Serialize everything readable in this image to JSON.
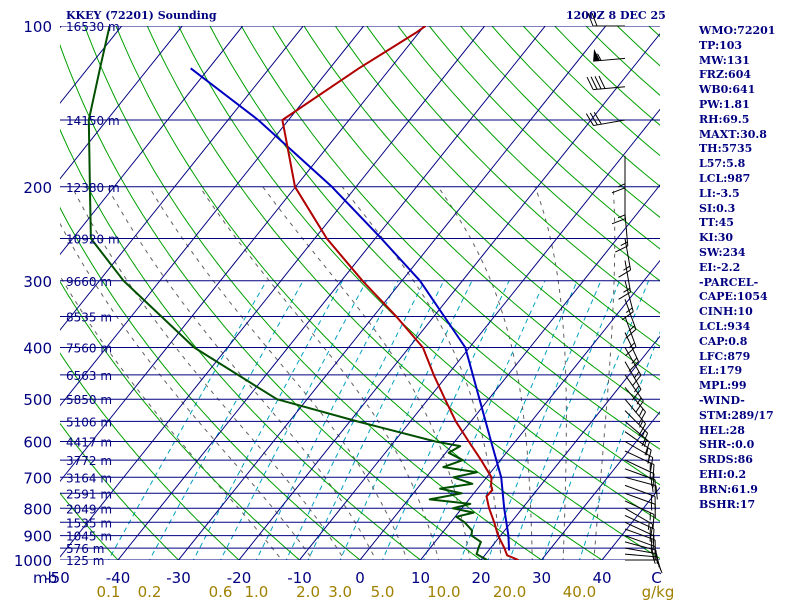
{
  "header": {
    "station": "KKEY (72201) Sounding",
    "time": "1200Z  8 DEC 25"
  },
  "indices": [
    "WMO:72201",
    "TP:103",
    "MW:131",
    "FRZ:604",
    "WB0:641",
    "PW:1.81",
    "RH:69.5",
    "MAXT:30.8",
    "TH:5735",
    "L57:5.8",
    "LCL:987",
    "LI:-3.5",
    "SI:0.3",
    "TT:45",
    "KI:30",
    "SW:234",
    "EI:-2.2",
    "-PARCEL-",
    "CAPE:1054",
    "CINH:10",
    "LCL:934",
    "CAP:0.8",
    "LFC:879",
    "EL:179",
    "MPL:99",
    "-WIND-",
    "STM:289/17",
    "HEL:28",
    "SHR-:0.0",
    "SRDS:86",
    "EHI:0.2",
    "BRN:61.9",
    "BSHR:17"
  ],
  "colors": {
    "isobar": "#000080",
    "isotherm": "#000080",
    "dry_adiabat": "#00a000",
    "moist_adiabat": "#606060",
    "mixing_ratio": "#00a0c0",
    "temperature": "#b00000",
    "dewpoint": "#005000",
    "parcel": "#0000c0",
    "axis_text": "#000080",
    "mixing_text": "#a08000",
    "wind_barb": "#000000"
  },
  "chart_data": {
    "type": "skew-t",
    "units": {
      "pressure": "mb",
      "temperature": "C",
      "mixing_ratio": "g/kg"
    },
    "pressure_levels": [
      100,
      200,
      300,
      400,
      500,
      600,
      700,
      800,
      900,
      1000
    ],
    "height_labels": [
      {
        "p": 100,
        "label": "16530 m"
      },
      {
        "p": 150,
        "label": "14150 m"
      },
      {
        "p": 200,
        "label": "12380 m"
      },
      {
        "p": 250,
        "label": "10920 m"
      },
      {
        "p": 300,
        "label": "9660 m"
      },
      {
        "p": 350,
        "label": "8535 m"
      },
      {
        "p": 400,
        "label": "7560 m"
      },
      {
        "p": 450,
        "label": "6563 m"
      },
      {
        "p": 500,
        "label": "5850 m"
      },
      {
        "p": 550,
        "label": "5106 m"
      },
      {
        "p": 600,
        "label": "4417 m"
      },
      {
        "p": 650,
        "label": "3772 m"
      },
      {
        "p": 700,
        "label": "3164 m"
      },
      {
        "p": 750,
        "label": "2591 m"
      },
      {
        "p": 800,
        "label": "2049 m"
      },
      {
        "p": 850,
        "label": "1535 m"
      },
      {
        "p": 900,
        "label": "1045 m"
      },
      {
        "p": 950,
        "label": "576 m"
      },
      {
        "p": 1000,
        "label": "125 m"
      }
    ],
    "temperature_ticks": [
      "-50",
      "-40",
      "-30",
      "-20",
      "-10",
      "0",
      "10",
      "20",
      "30",
      "40",
      "C"
    ],
    "temperature_tick_values": [
      -50,
      -40,
      -30,
      -20,
      -10,
      0,
      10,
      20,
      30,
      40
    ],
    "mixing_ratio_ticks": [
      "0.1",
      "0.2",
      "0.6",
      "1.0",
      "2.0",
      "3.0",
      "5.0",
      "10.0",
      "20.0",
      "40.0",
      "g/kg"
    ],
    "mixing_ratio_tick_values": [
      0.1,
      0.2,
      0.6,
      1.0,
      2.0,
      3.0,
      5.0,
      10.0,
      20.0,
      40.0
    ],
    "mixing_ratio_lines": [
      0.1,
      0.2,
      0.4,
      0.6,
      1.0,
      1.5,
      2.0,
      3.0,
      5.0,
      8.0,
      12.0,
      16.0,
      20.0,
      28.0,
      40.0
    ],
    "pressure_axis_label": "mb",
    "temperature_profile": [
      {
        "p": 1000,
        "t": 26.2
      },
      {
        "p": 980,
        "t": 23.7
      },
      {
        "p": 950,
        "t": 22.3
      },
      {
        "p": 900,
        "t": 19.6
      },
      {
        "p": 850,
        "t": 17.2
      },
      {
        "p": 800,
        "t": 14.5
      },
      {
        "p": 760,
        "t": 12.5
      },
      {
        "p": 740,
        "t": 12.6
      },
      {
        "p": 725,
        "t": 11.8
      },
      {
        "p": 700,
        "t": 10.8
      },
      {
        "p": 650,
        "t": 6.8
      },
      {
        "p": 600,
        "t": 2.3
      },
      {
        "p": 550,
        "t": -2.5
      },
      {
        "p": 500,
        "t": -7.2
      },
      {
        "p": 450,
        "t": -12.3
      },
      {
        "p": 400,
        "t": -17.7
      },
      {
        "p": 350,
        "t": -26.2
      },
      {
        "p": 300,
        "t": -36.5
      },
      {
        "p": 250,
        "t": -48.0
      },
      {
        "p": 200,
        "t": -60.1
      },
      {
        "p": 150,
        "t": -71.0
      },
      {
        "p": 120,
        "t": -65.2
      },
      {
        "p": 103,
        "t": -60.5
      },
      {
        "p": 100,
        "t": -59.8
      }
    ],
    "dewpoint_profile": [
      {
        "p": 1000,
        "t": 21.0
      },
      {
        "p": 975,
        "t": 18.5
      },
      {
        "p": 950,
        "t": 18.0
      },
      {
        "p": 925,
        "t": 17.6
      },
      {
        "p": 900,
        "t": 15.2
      },
      {
        "p": 880,
        "t": 14.6
      },
      {
        "p": 850,
        "t": 12.3
      },
      {
        "p": 830,
        "t": 10.2
      },
      {
        "p": 815,
        "t": 12.5
      },
      {
        "p": 800,
        "t": 8.5
      },
      {
        "p": 785,
        "t": 10.8
      },
      {
        "p": 770,
        "t": 3.5
      },
      {
        "p": 750,
        "t": 8.0
      },
      {
        "p": 735,
        "t": 3.8
      },
      {
        "p": 720,
        "t": 8.5
      },
      {
        "p": 700,
        "t": 4.5
      },
      {
        "p": 685,
        "t": 7.7
      },
      {
        "p": 670,
        "t": 1.5
      },
      {
        "p": 650,
        "t": 3.8
      },
      {
        "p": 630,
        "t": 0.5
      },
      {
        "p": 612,
        "t": 1.5
      },
      {
        "p": 600,
        "t": -3.2
      },
      {
        "p": 550,
        "t": -18.8
      },
      {
        "p": 500,
        "t": -35.0
      },
      {
        "p": 400,
        "t": -55.5
      },
      {
        "p": 300,
        "t": -76.0
      },
      {
        "p": 250,
        "t": -87.0
      },
      {
        "p": 200,
        "t": -94.0
      },
      {
        "p": 150,
        "t": -103.0
      },
      {
        "p": 120,
        "t": -108.0
      },
      {
        "p": 100,
        "t": -112.0
      }
    ],
    "parcel_profile": [
      {
        "p": 960,
        "t": 23.4
      },
      {
        "p": 900,
        "t": 21.3
      },
      {
        "p": 800,
        "t": 17.0
      },
      {
        "p": 700,
        "t": 12.4
      },
      {
        "p": 600,
        "t": 6.0
      },
      {
        "p": 500,
        "t": -1.5
      },
      {
        "p": 400,
        "t": -10.7
      },
      {
        "p": 300,
        "t": -27.0
      },
      {
        "p": 250,
        "t": -39.0
      },
      {
        "p": 200,
        "t": -54.0
      },
      {
        "p": 150,
        "t": -75.0
      },
      {
        "p": 120,
        "t": -93.0
      }
    ],
    "winds": [
      {
        "p": 1000,
        "dir": 90,
        "spd": 10
      },
      {
        "p": 975,
        "dir": 95,
        "spd": 15
      },
      {
        "p": 950,
        "dir": 100,
        "spd": 15
      },
      {
        "p": 925,
        "dir": 105,
        "spd": 15
      },
      {
        "p": 900,
        "dir": 110,
        "spd": 15
      },
      {
        "p": 875,
        "dir": 110,
        "spd": 15
      },
      {
        "p": 850,
        "dir": 115,
        "spd": 15
      },
      {
        "p": 825,
        "dir": 115,
        "spd": 15
      },
      {
        "p": 800,
        "dir": 120,
        "spd": 15
      },
      {
        "p": 775,
        "dir": 115,
        "spd": 15
      },
      {
        "p": 750,
        "dir": 110,
        "spd": 15
      },
      {
        "p": 725,
        "dir": 110,
        "spd": 15
      },
      {
        "p": 700,
        "dir": 105,
        "spd": 15
      },
      {
        "p": 675,
        "dir": 110,
        "spd": 15
      },
      {
        "p": 650,
        "dir": 115,
        "spd": 15
      },
      {
        "p": 625,
        "dir": 115,
        "spd": 15
      },
      {
        "p": 600,
        "dir": 120,
        "spd": 15
      },
      {
        "p": 575,
        "dir": 125,
        "spd": 15
      },
      {
        "p": 550,
        "dir": 130,
        "spd": 15
      },
      {
        "p": 525,
        "dir": 135,
        "spd": 15
      },
      {
        "p": 500,
        "dir": 140,
        "spd": 15
      },
      {
        "p": 475,
        "dir": 140,
        "spd": 15
      },
      {
        "p": 450,
        "dir": 145,
        "spd": 15
      },
      {
        "p": 425,
        "dir": 150,
        "spd": 15
      },
      {
        "p": 400,
        "dir": 150,
        "spd": 15
      },
      {
        "p": 375,
        "dir": 155,
        "spd": 15
      },
      {
        "p": 350,
        "dir": 160,
        "spd": 15
      },
      {
        "p": 325,
        "dir": 160,
        "spd": 15
      },
      {
        "p": 300,
        "dir": 165,
        "spd": 15
      },
      {
        "p": 275,
        "dir": 170,
        "spd": 15
      },
      {
        "p": 250,
        "dir": 170,
        "spd": 15
      },
      {
        "p": 225,
        "dir": 175,
        "spd": 15
      },
      {
        "p": 200,
        "dir": 180,
        "spd": 15
      },
      {
        "p": 175,
        "dir": 180,
        "spd": 15
      },
      {
        "p": 150,
        "dir": 260,
        "spd": 30
      },
      {
        "p": 130,
        "dir": 265,
        "spd": 40
      },
      {
        "p": 115,
        "dir": 265,
        "spd": 55
      },
      {
        "p": 100,
        "dir": 270,
        "spd": 20
      }
    ]
  }
}
